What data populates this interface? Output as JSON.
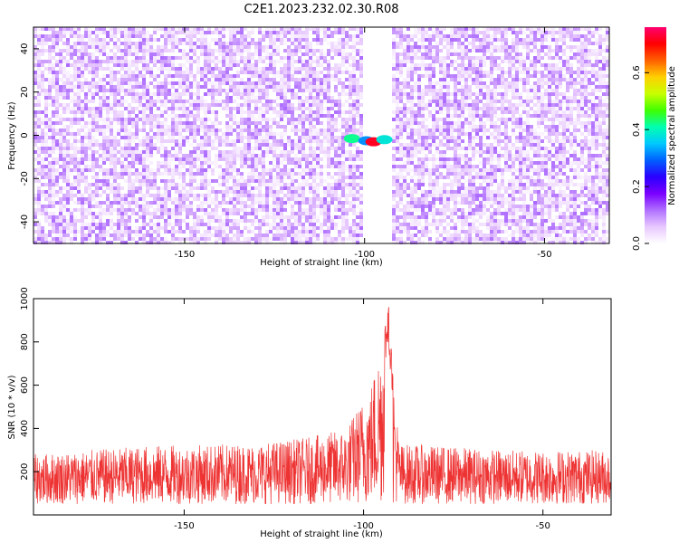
{
  "title": "C2E1.2023.232.02.30.R08",
  "chart_data": [
    {
      "type": "heatmap",
      "xlabel": "Height of straight line (km)",
      "ylabel": "Frequency (Hz)",
      "xlim": [
        -192,
        -32
      ],
      "ylim": [
        -50,
        50
      ],
      "xticks": [
        -150,
        -100,
        -50
      ],
      "yticks": [
        -40,
        -20,
        0,
        20,
        40
      ],
      "grid": false,
      "colorbar": {
        "label": "Normalized spectral amplitude",
        "range": [
          0,
          0.76
        ],
        "ticks": [
          0.0,
          0.2,
          0.4,
          0.6
        ],
        "colors": [
          "#ffffff",
          "#e8c8ff",
          "#b070ff",
          "#7a00ff",
          "#2a00ff",
          "#0060ff",
          "#00c8ff",
          "#00ffb0",
          "#40ff00",
          "#c8ff00",
          "#ffd000",
          "#ff6000",
          "#ff0000",
          "#ff0070"
        ]
      },
      "background_level": [
        0,
        0.12
      ],
      "gap_band_km": [
        -101,
        -93
      ],
      "hot_spots": [
        {
          "x": -103.5,
          "y": -1.5,
          "value": 0.42
        },
        {
          "x": -99.5,
          "y": -2.5,
          "value": 0.32
        },
        {
          "x": -97.5,
          "y": -3.0,
          "value": 0.72
        },
        {
          "x": -94.5,
          "y": -2.0,
          "value": 0.38
        }
      ]
    },
    {
      "type": "line",
      "xlabel": "Height of straight line (km)",
      "ylabel": "SNR (10 * v/v)",
      "xlim": [
        -192,
        -31
      ],
      "ylim": [
        0,
        1000
      ],
      "xticks": [
        -150,
        -100,
        -50
      ],
      "yticks": [
        200,
        400,
        600,
        800,
        1000
      ],
      "grid": false,
      "series_color": "#ee3333",
      "baseline_range": [
        50,
        300
      ],
      "peak": {
        "x": -93,
        "y": 1000
      },
      "envelope": [
        [
          -192,
          280
        ],
        [
          -160,
          320
        ],
        [
          -130,
          330
        ],
        [
          -115,
          360
        ],
        [
          -105,
          400
        ],
        [
          -98,
          600
        ],
        [
          -95,
          820
        ],
        [
          -93,
          1000
        ],
        [
          -92,
          700
        ],
        [
          -90,
          330
        ],
        [
          -80,
          320
        ],
        [
          -60,
          300
        ],
        [
          -31,
          300
        ]
      ]
    }
  ]
}
